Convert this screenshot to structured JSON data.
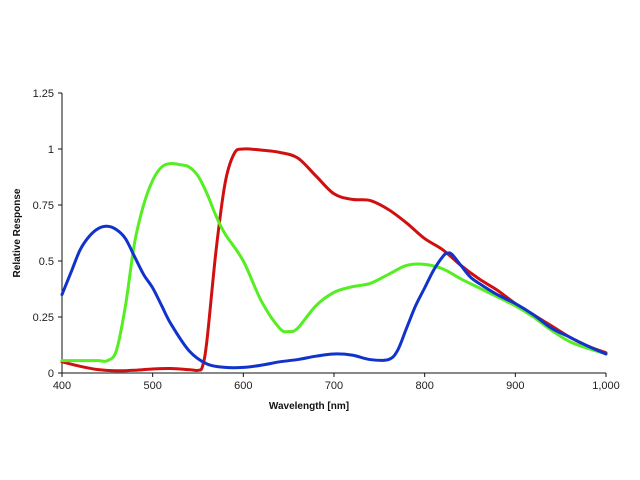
{
  "chart_data": {
    "type": "line",
    "xlabel": "Wavelength [nm]",
    "ylabel": "Relative Response",
    "xlim": [
      400,
      1000
    ],
    "ylim": [
      0,
      1.25
    ],
    "x_ticks": [
      400,
      500,
      600,
      700,
      800,
      900,
      1000
    ],
    "x_tick_labels": [
      "400",
      "500",
      "600",
      "700",
      "800",
      "900",
      "1,000"
    ],
    "y_ticks": [
      0,
      0.25,
      0.5,
      0.75,
      1,
      1.25
    ],
    "y_tick_labels": [
      "0",
      "0.25",
      "0.5",
      "0.75",
      "1",
      "1.25"
    ],
    "grid": false,
    "series": [
      {
        "color": "#d01010",
        "x": [
          400,
          420,
          440,
          460,
          480,
          500,
          520,
          540,
          550,
          555,
          560,
          570,
          580,
          590,
          600,
          620,
          640,
          660,
          680,
          700,
          720,
          740,
          760,
          780,
          800,
          820,
          840,
          860,
          880,
          900,
          920,
          940,
          960,
          980,
          1000
        ],
        "y": [
          0.05,
          0.03,
          0.015,
          0.01,
          0.012,
          0.018,
          0.02,
          0.015,
          0.012,
          0.03,
          0.15,
          0.55,
          0.85,
          0.98,
          1.0,
          0.995,
          0.985,
          0.96,
          0.88,
          0.8,
          0.775,
          0.77,
          0.73,
          0.67,
          0.6,
          0.55,
          0.48,
          0.42,
          0.37,
          0.31,
          0.26,
          0.21,
          0.16,
          0.12,
          0.09
        ]
      },
      {
        "color": "#55ee22",
        "x": [
          400,
          420,
          440,
          450,
          460,
          470,
          480,
          490,
          500,
          510,
          520,
          530,
          540,
          550,
          560,
          570,
          580,
          600,
          620,
          640,
          650,
          660,
          680,
          700,
          720,
          740,
          760,
          780,
          800,
          820,
          840,
          860,
          880,
          900,
          920,
          940,
          960,
          980,
          1000
        ],
        "y": [
          0.055,
          0.055,
          0.055,
          0.055,
          0.1,
          0.3,
          0.58,
          0.75,
          0.86,
          0.92,
          0.935,
          0.93,
          0.92,
          0.88,
          0.8,
          0.7,
          0.62,
          0.5,
          0.32,
          0.2,
          0.185,
          0.2,
          0.3,
          0.36,
          0.385,
          0.4,
          0.44,
          0.48,
          0.485,
          0.465,
          0.42,
          0.38,
          0.34,
          0.3,
          0.25,
          0.19,
          0.14,
          0.11,
          0.085
        ]
      },
      {
        "color": "#1133cc",
        "x": [
          400,
          410,
          420,
          430,
          440,
          450,
          460,
          470,
          480,
          490,
          500,
          510,
          520,
          540,
          560,
          580,
          600,
          620,
          640,
          660,
          680,
          700,
          720,
          740,
          760,
          770,
          780,
          790,
          800,
          810,
          820,
          825,
          830,
          840,
          850,
          860,
          880,
          900,
          920,
          940,
          960,
          980,
          1000
        ],
        "y": [
          0.35,
          0.45,
          0.55,
          0.61,
          0.645,
          0.655,
          0.64,
          0.6,
          0.52,
          0.44,
          0.38,
          0.3,
          0.22,
          0.1,
          0.04,
          0.025,
          0.025,
          0.035,
          0.05,
          0.06,
          0.075,
          0.085,
          0.08,
          0.06,
          0.06,
          0.1,
          0.2,
          0.3,
          0.38,
          0.46,
          0.52,
          0.535,
          0.53,
          0.48,
          0.43,
          0.4,
          0.35,
          0.31,
          0.26,
          0.2,
          0.16,
          0.12,
          0.085
        ]
      }
    ]
  }
}
